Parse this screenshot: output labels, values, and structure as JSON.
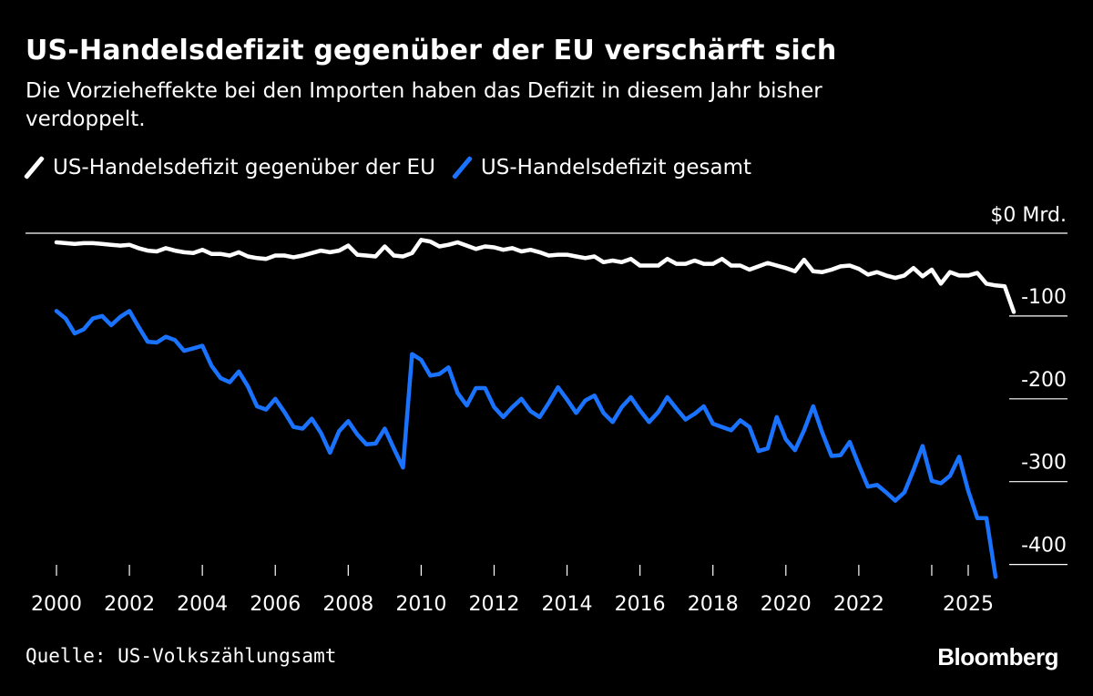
{
  "title": "US-Handelsdefizit gegenüber der EU verschärft sich",
  "subtitle": "Die Vorzieheffekte bei den Importen haben das Defizit in diesem Jahr bisher verdoppelt.",
  "legend": [
    {
      "label": "US-Handelsdefizit gegenüber der EU",
      "color": "#ffffff"
    },
    {
      "label": "US-Handelsdefizit gesamt",
      "color": "#1a73ff"
    }
  ],
  "source": "Quelle: US-Volkszählungsamt",
  "brand": "Bloomberg",
  "chart_data": {
    "type": "line",
    "title": "US-Handelsdefizit gegenüber der EU verschärft sich",
    "ylabel": "$0 Mrd.",
    "x_start": 2000.0,
    "x_step": 0.25,
    "xlim": [
      2000,
      2025
    ],
    "ylim": [
      -410,
      0
    ],
    "y_ticks": [
      {
        "value": 0,
        "label": "$0 Mrd."
      },
      {
        "value": -100,
        "label": "-100"
      },
      {
        "value": -200,
        "label": "-200"
      },
      {
        "value": -300,
        "label": "-300"
      },
      {
        "value": -400,
        "label": "-400"
      }
    ],
    "x_ticks": [
      "2000",
      "2002",
      "2004",
      "2006",
      "2008",
      "2010",
      "2012",
      "2014",
      "2016",
      "2018",
      "2020",
      "2022",
      "2025"
    ],
    "x_tick_values": [
      2000,
      2002,
      2004,
      2006,
      2008,
      2010,
      2012,
      2014,
      2016,
      2018,
      2020,
      2022,
      2025
    ],
    "x_minor_ticks": [
      2000,
      2002,
      2004,
      2006,
      2008,
      2010,
      2012,
      2014,
      2016,
      2018,
      2020,
      2022,
      2024,
      2025
    ],
    "series": [
      {
        "name": "US-Handelsdefizit gegenüber der EU",
        "color": "#ffffff",
        "values": [
          -11,
          -12,
          -13,
          -12,
          -12,
          -13,
          -14,
          -15,
          -14,
          -18,
          -21,
          -22,
          -18,
          -21,
          -23,
          -24,
          -20,
          -25,
          -25,
          -27,
          -23,
          -28,
          -30,
          -31,
          -27,
          -27,
          -29,
          -27,
          -24,
          -21,
          -23,
          -21,
          -15,
          -26,
          -27,
          -28,
          -16,
          -27,
          -28,
          -24,
          -8,
          -10,
          -16,
          -14,
          -11,
          -15,
          -19,
          -16,
          -17,
          -20,
          -18,
          -22,
          -20,
          -23,
          -27,
          -26,
          -26,
          -28,
          -30,
          -28,
          -35,
          -33,
          -35,
          -31,
          -39,
          -39,
          -39,
          -31,
          -37,
          -37,
          -33,
          -37,
          -37,
          -31,
          -39,
          -39,
          -44,
          -40,
          -36,
          -39,
          -42,
          -46,
          -32,
          -46,
          -47,
          -44,
          -40,
          -39,
          -43,
          -50,
          -47,
          -51,
          -54,
          -51,
          -42,
          -52,
          -44,
          -61,
          -47,
          -51,
          -51,
          -48,
          -61,
          -63,
          -64,
          -95
        ]
      },
      {
        "name": "US-Handelsdefizit gesamt",
        "color": "#1a73ff",
        "values": [
          -94,
          -103,
          -121,
          -116,
          -103,
          -100,
          -111,
          -101,
          -94,
          -113,
          -131,
          -132,
          -125,
          -129,
          -142,
          -139,
          -136,
          -160,
          -175,
          -180,
          -167,
          -185,
          -209,
          -213,
          -200,
          -216,
          -234,
          -236,
          -224,
          -241,
          -265,
          -239,
          -227,
          -243,
          -255,
          -254,
          -236,
          -260,
          -283,
          -146,
          -153,
          -172,
          -170,
          -162,
          -193,
          -208,
          -187,
          -187,
          -210,
          -222,
          -210,
          -200,
          -215,
          -222,
          -205,
          -186,
          -201,
          -217,
          -202,
          -196,
          -217,
          -228,
          -210,
          -198,
          -214,
          -228,
          -216,
          -198,
          -212,
          -225,
          -218,
          -209,
          -230,
          -234,
          -238,
          -226,
          -234,
          -263,
          -260,
          -222,
          -249,
          -262,
          -238,
          -209,
          -241,
          -269,
          -268,
          -252,
          -280,
          -306,
          -304,
          -313,
          -323,
          -313,
          -286,
          -257,
          -299,
          -302,
          -293,
          -270,
          -311,
          -344,
          -344,
          -415
        ]
      }
    ]
  }
}
